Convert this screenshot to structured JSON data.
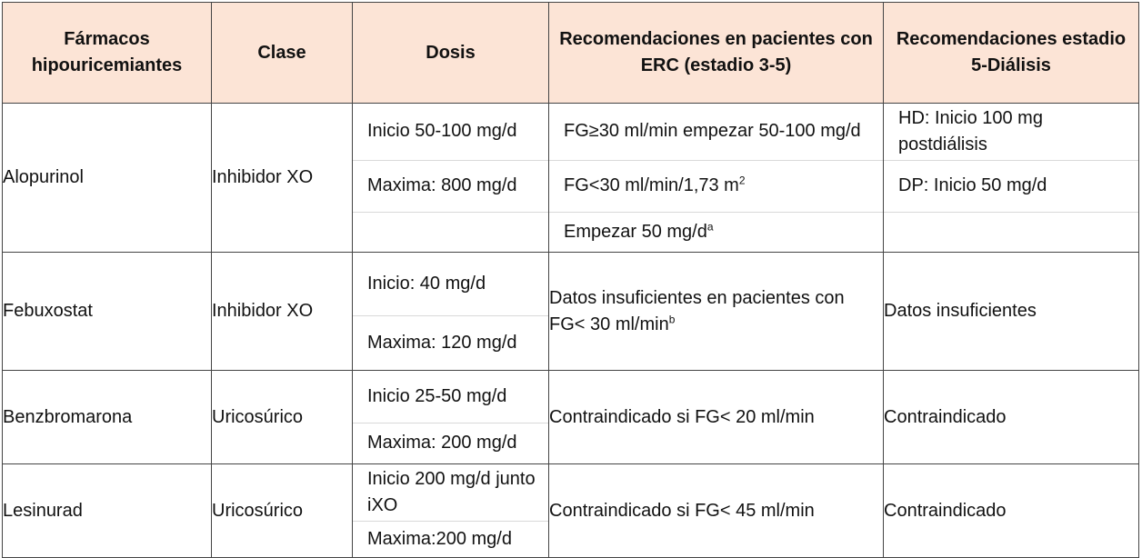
{
  "headers": [
    "Fármacos hipouricemiantes",
    "Clase",
    "Dosis",
    "Recomendaciones en pacientes con ERC (estadio 3-5)",
    "Recomendaciones estadio 5-Diálisis"
  ],
  "rows": [
    {
      "drug": "Alopurinol",
      "class": "Inhibidor XO",
      "dose_start": "Inicio 50-100 mg/d",
      "dose_max": "Maxima: 800 mg/d",
      "erc": [
        "FG≥30 ml/min empezar 50-100 mg/d",
        "FG<30 ml/min/1,73 m",
        "Empezar 50 mg/d"
      ],
      "erc_sup": [
        "",
        "2",
        "a"
      ],
      "dialysis": [
        "HD: Inicio 100 mg postdiálisis",
        "DP: Inicio 50 mg/d"
      ]
    },
    {
      "drug": "Febuxostat",
      "class": "Inhibidor XO",
      "dose_start": "Inicio: 40 mg/d",
      "dose_max": "Maxima: 120 mg/d",
      "erc": "Datos insuficientes en pacientes con FG< 30 ml/min",
      "erc_sup": "b",
      "dialysis": "Datos insuficientes"
    },
    {
      "drug": "Benzbromarona",
      "class": "Uricosúrico",
      "dose_start": "Inicio 25-50 mg/d",
      "dose_max": "Maxima: 200 mg/d",
      "erc": "Contraindicado si FG< 20 ml/min",
      "dialysis": "Contraindicado"
    },
    {
      "drug": "Lesinurad",
      "class": "Uricosúrico",
      "dose_start": "Inicio 200 mg/d junto iXO",
      "dose_max": "Maxima:200 mg/d",
      "erc": "Contraindicado si FG< 45 ml/min",
      "dialysis": "Contraindicado"
    }
  ]
}
